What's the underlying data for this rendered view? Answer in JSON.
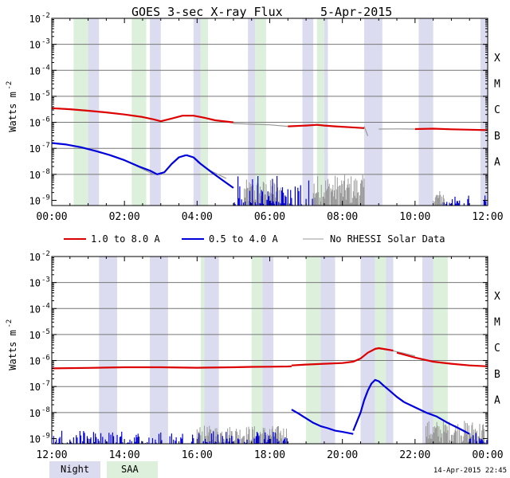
{
  "chart_data": {
    "type": "line",
    "title": "GOES 3-sec X-ray Flux",
    "date": "5-Apr-2015",
    "ylabel": "Watts m",
    "ylabel_sup": "-2",
    "y_tick_labels": [
      {
        "mant": "10",
        "exp": "-2"
      },
      {
        "mant": "10",
        "exp": "-3"
      },
      {
        "mant": "10",
        "exp": "-4"
      },
      {
        "mant": "10",
        "exp": "-5"
      },
      {
        "mant": "10",
        "exp": "-6"
      },
      {
        "mant": "10",
        "exp": "-7"
      },
      {
        "mant": "10",
        "exp": "-8"
      },
      {
        "mant": "10",
        "exp": "-9"
      }
    ],
    "flare_classes": [
      "X",
      "M",
      "C",
      "B",
      "A"
    ],
    "legend": {
      "long": "1.0 to 8.0 A",
      "short": "0.5 to 4.0 A",
      "gap": "No RHESSI Solar Data"
    },
    "colors": {
      "long": "#dd0000",
      "short": "#0000dd",
      "gap": "#999999",
      "night": "#dcdcf0",
      "saa": "#dcf0dc"
    },
    "shade_legend": {
      "night": "Night",
      "saa": "SAA"
    },
    "timestamp": "14-Apr-2015 22:45",
    "panels": [
      {
        "x_range": [
          0,
          12
        ],
        "y_range_log10": [
          -9.2,
          -2
        ],
        "x_tick_labels": [
          "00:00",
          "02:00",
          "04:00",
          "06:00",
          "08:00",
          "10:00",
          "12:00"
        ],
        "night": [
          [
            1.0,
            1.3
          ],
          [
            2.7,
            3.0
          ],
          [
            3.9,
            4.1
          ],
          [
            5.4,
            5.6
          ],
          [
            6.9,
            7.2
          ],
          [
            7.5,
            7.6
          ],
          [
            8.6,
            9.1
          ],
          [
            10.1,
            10.5
          ],
          [
            11.8,
            12.0
          ]
        ],
        "saa": [
          [
            0.6,
            1.0
          ],
          [
            2.2,
            2.6
          ],
          [
            4.1,
            4.3
          ],
          [
            5.6,
            5.9
          ],
          [
            7.3,
            7.5
          ]
        ],
        "long": [
          {
            "name": "00:00-05:00",
            "x": [
              0,
              0.5,
              1.0,
              1.5,
              2.0,
              2.5,
              2.8,
              3.0,
              3.3,
              3.6,
              3.9,
              4.2,
              4.5,
              5.0
            ],
            "y": [
              3.5e-06,
              3.2e-06,
              2.8e-06,
              2.4e-06,
              2e-06,
              1.6e-06,
              1.3e-06,
              1.1e-06,
              1.4e-06,
              1.8e-06,
              1.8e-06,
              1.5e-06,
              1.2e-06,
              1e-06
            ]
          },
          {
            "name": "06:30-08:40",
            "x": [
              6.5,
              7.0,
              7.3,
              7.5,
              7.8,
              8.2,
              8.6
            ],
            "y": [
              7e-07,
              7.5e-07,
              8e-07,
              7.5e-07,
              7e-07,
              6.5e-07,
              6e-07
            ]
          },
          {
            "name": "10:00-12:00",
            "x": [
              10.0,
              10.5,
              11.0,
              11.5,
              12.0
            ],
            "y": [
              5.5e-07,
              5.7e-07,
              5.4e-07,
              5.2e-07,
              5e-07
            ]
          }
        ],
        "long_gap": [
          {
            "name": "05:00-06:30",
            "x": [
              5.0,
              5.5,
              6.0,
              6.5
            ],
            "y": [
              9e-07,
              8.5e-07,
              8e-07,
              7e-07
            ]
          },
          {
            "name": "08:55-10:00",
            "x": [
              9.0,
              9.5,
              10.0
            ],
            "y": [
              5.5e-07,
              5.6e-07,
              5.5e-07
            ]
          },
          {
            "name": "08:40 dip",
            "x": [
              8.6,
              8.7
            ],
            "y": [
              7e-07,
              3e-07
            ]
          }
        ],
        "short": [
          {
            "name": "00:00-03:50",
            "x": [
              0,
              0.4,
              0.8,
              1.2,
              1.6,
              2.0,
              2.4,
              2.7,
              2.9,
              3.1,
              3.3,
              3.5,
              3.7
            ],
            "y": [
              1.6e-07,
              1.4e-07,
              1.1e-07,
              8e-08,
              5.5e-08,
              3.5e-08,
              2e-08,
              1.4e-08,
              1e-08,
              1.2e-08,
              2.5e-08,
              4.5e-08,
              5.5e-08
            ]
          },
          {
            "name": "03:50-05:00",
            "x": [
              3.7,
              3.9,
              4.1,
              4.4,
              4.7,
              5.0
            ],
            "y": [
              5.5e-08,
              4.5e-08,
              2.5e-08,
              1.2e-08,
              6e-09,
              3e-09
            ]
          }
        ],
        "short_gap": [
          {
            "name": "02:00-02:50",
            "x": [
              2.0,
              2.5,
              2.8
            ],
            "y": [
              3.5e-08,
              1.6e-08,
              1e-08
            ]
          },
          {
            "name": "04:00-04:50",
            "x": [
              4.0,
              4.4,
              4.8
            ],
            "y": [
              3e-08,
              1.3e-08,
              7e-09
            ]
          }
        ],
        "short_noise": [
          {
            "from": 5.0,
            "to": 7.2,
            "max_log10": -8.0
          },
          {
            "from": 10.8,
            "to": 11.5,
            "max_log10": -8.8
          },
          {
            "from": 11.9,
            "to": 12.0,
            "max_log10": -8.8
          }
        ],
        "gap_noise": [
          {
            "from": 5.3,
            "to": 6.3,
            "max_log10": -8.2
          },
          {
            "from": 7.2,
            "to": 8.6,
            "max_log10": -8.0
          },
          {
            "from": 10.5,
            "to": 10.8,
            "max_log10": -8.6
          }
        ]
      },
      {
        "x_range": [
          12,
          24
        ],
        "y_range_log10": [
          -9.2,
          -2
        ],
        "x_tick_labels": [
          "12:00",
          "14:00",
          "16:00",
          "18:00",
          "20:00",
          "22:00",
          "00:00"
        ],
        "night": [
          [
            13.3,
            13.8
          ],
          [
            14.7,
            15.2
          ],
          [
            16.2,
            16.6
          ],
          [
            17.8,
            18.1
          ],
          [
            19.4,
            19.8
          ],
          [
            20.5,
            20.9
          ],
          [
            21.0,
            21.4
          ],
          [
            22.2,
            22.6
          ]
        ],
        "saa": [
          [
            16.1,
            16.2
          ],
          [
            17.5,
            17.8
          ],
          [
            19.0,
            19.4
          ],
          [
            20.9,
            21.2
          ],
          [
            22.5,
            22.9
          ]
        ],
        "long": [
          {
            "name": "12:00-18:40",
            "x": [
              12,
              13,
              14,
              15,
              16,
              17,
              17.5,
              18.0,
              18.5,
              18.6
            ],
            "y": [
              5e-07,
              5.2e-07,
              5.5e-07,
              5.5e-07,
              5.3e-07,
              5.5e-07,
              5.7e-07,
              5.8e-07,
              5.9e-07,
              6e-07
            ]
          },
          {
            "name": "18:40-21:30",
            "x": [
              18.6,
              19.0,
              19.5,
              20.0,
              20.3,
              20.5,
              20.7,
              20.9,
              21.0,
              21.2,
              21.4
            ],
            "y": [
              6.5e-07,
              7e-07,
              7.5e-07,
              8e-07,
              9e-07,
              1.2e-06,
              2e-06,
              2.8e-06,
              3e-06,
              2.7e-06,
              2.4e-06
            ]
          },
          {
            "name": "21:30-24:00",
            "x": [
              21.5,
              22.0,
              22.5,
              23.0,
              23.5,
              24.0
            ],
            "y": [
              2e-06,
              1.3e-06,
              9e-07,
              7.5e-07,
              6.5e-07,
              6e-07
            ]
          }
        ],
        "long_gap": [
          {
            "name": "20:50-22:00",
            "x": [
              20.9,
              21.3,
              21.7,
              22.0
            ],
            "y": [
              3e-06,
              2.5e-06,
              1.9e-06,
              1.5e-06
            ]
          },
          {
            "name": "22:30-23:40",
            "x": [
              22.6,
              23.0,
              23.6
            ],
            "y": [
              8.5e-07,
              7.5e-07,
              6.5e-07
            ]
          }
        ],
        "short": [
          {
            "name": "18:40-20:30",
            "x": [
              18.6,
              18.8,
              19.0,
              19.2,
              19.4,
              19.6,
              19.8,
              20.0,
              20.2,
              20.3
            ],
            "y": [
              1.3e-08,
              9e-09,
              6e-09,
              4e-09,
              3e-09,
              2.5e-09,
              2e-09,
              1.8e-09,
              1.6e-09,
              1.5e-09
            ]
          },
          {
            "name": "20:30-21:50",
            "x": [
              20.3,
              20.5,
              20.6,
              20.7,
              20.8,
              20.9,
              21.0,
              21.1,
              21.3,
              21.5,
              21.7
            ],
            "y": [
              2e-09,
              1e-08,
              3e-08,
              7e-08,
              1.3e-07,
              1.8e-07,
              1.6e-07,
              1.2e-07,
              7e-08,
              4e-08,
              2.5e-08
            ]
          },
          {
            "name": "21:50-23:30",
            "x": [
              21.7,
              22.0,
              22.3,
              22.6,
              22.9,
              23.2,
              23.5
            ],
            "y": [
              2.5e-08,
              1.6e-08,
              1e-08,
              7e-09,
              4e-09,
              2.5e-09,
              1.5e-09
            ]
          }
        ],
        "short_gap": [],
        "short_noise": [
          {
            "from": 12.0,
            "to": 18.5,
            "max_log10": -8.7
          },
          {
            "from": 23.5,
            "to": 24.0,
            "max_log10": -8.7
          }
        ],
        "gap_noise": [
          {
            "from": 16.0,
            "to": 18.5,
            "max_log10": -8.5
          },
          {
            "from": 22.3,
            "to": 23.9,
            "max_log10": -8.3
          }
        ]
      }
    ]
  }
}
